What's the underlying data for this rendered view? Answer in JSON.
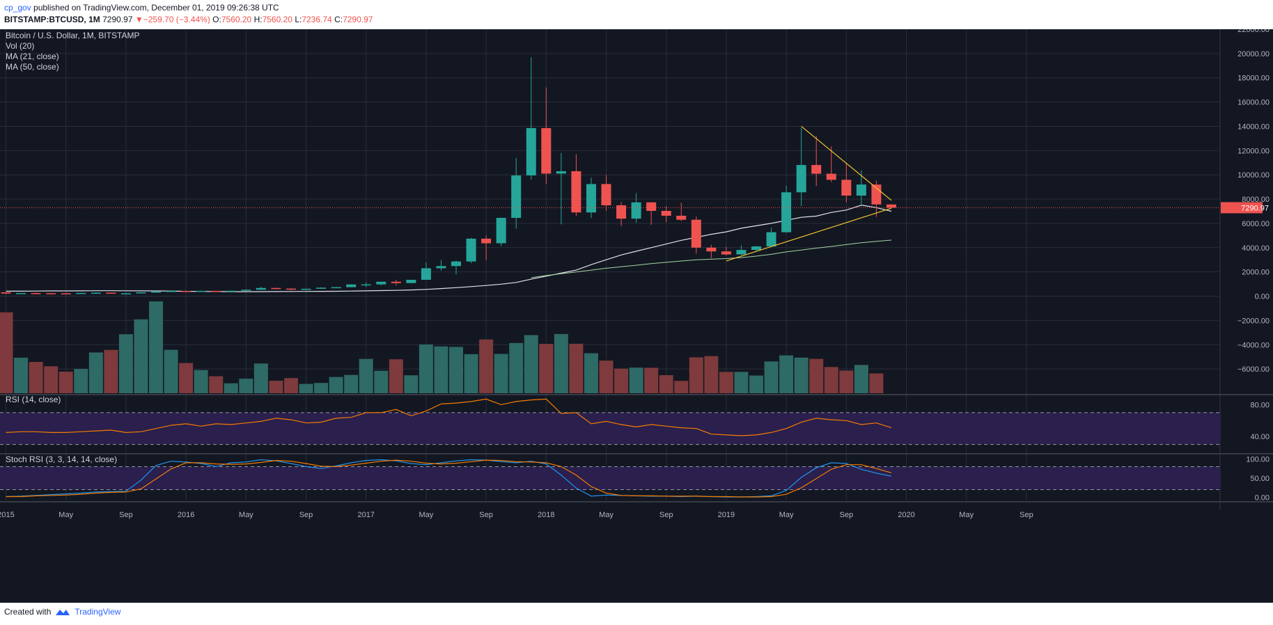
{
  "header": {
    "user": "cp_gov",
    "published": " published on TradingView.com, December 01, 2019 09:26:38 UTC",
    "symbol": "BITSTAMP:BTCUSD, 1M",
    "last": "7290.97",
    "change_arrow": "▼",
    "change": "−259.70 (−3.44%)",
    "o_label": "O:",
    "o": "7560.20",
    "h_label": "H:",
    "h": "7560.20",
    "l_label": "L:",
    "l": "7236.74",
    "c_label": "C:",
    "c": "7290.97"
  },
  "footer": {
    "created_with": "Created with",
    "brand": "TradingView"
  },
  "colors": {
    "background": "#131722",
    "grid": "#2a2e39",
    "up": "#26a69a",
    "down": "#ef5350",
    "vol_up": "#2e6a66",
    "vol_down": "#7e3a3c",
    "ma21": "#e0e3eb",
    "ma50": "#a5d6a7",
    "trend": "#f4c430",
    "rsi_line": "#f57c00",
    "rsi_band": "#2a1f4d",
    "stoch_k": "#2196f3",
    "stoch_d": "#f57c00",
    "price_line": "#ef5350"
  },
  "chart_data": [
    {
      "type": "candlestick",
      "title": "Bitcoin / U.S. Dollar, 1M, BITSTAMP",
      "legend": [
        "Vol (20)",
        "MA (21, close)",
        "MA (50, close)"
      ],
      "x_ticks": [
        "2015",
        "May",
        "Sep",
        "2016",
        "May",
        "Sep",
        "2017",
        "May",
        "Sep",
        "2018",
        "May",
        "Sep",
        "2019",
        "May",
        "Sep",
        "2020",
        "May",
        "Sep"
      ],
      "y_ticks": [
        "22000.00",
        "20000.00",
        "18000.00",
        "16000.00",
        "14000.00",
        "12000.00",
        "10000.00",
        "8000.00",
        "6000.00",
        "4000.00",
        "2000.00",
        "0.00",
        "−2000.00",
        "−4000.00",
        "−6000.00"
      ],
      "ylim": [
        -8000,
        22000
      ],
      "last_price_label": "7290.97",
      "months": [
        "2015-01",
        "2015-02",
        "2015-03",
        "2015-04",
        "2015-05",
        "2015-06",
        "2015-07",
        "2015-08",
        "2015-09",
        "2015-10",
        "2015-11",
        "2015-12",
        "2016-01",
        "2016-02",
        "2016-03",
        "2016-04",
        "2016-05",
        "2016-06",
        "2016-07",
        "2016-08",
        "2016-09",
        "2016-10",
        "2016-11",
        "2016-12",
        "2017-01",
        "2017-02",
        "2017-03",
        "2017-04",
        "2017-05",
        "2017-06",
        "2017-07",
        "2017-08",
        "2017-09",
        "2017-10",
        "2017-11",
        "2017-12",
        "2018-01",
        "2018-02",
        "2018-03",
        "2018-04",
        "2018-05",
        "2018-06",
        "2018-07",
        "2018-08",
        "2018-09",
        "2018-10",
        "2018-11",
        "2018-12",
        "2019-01",
        "2019-02",
        "2019-03",
        "2019-04",
        "2019-05",
        "2019-06",
        "2019-07",
        "2019-08",
        "2019-09",
        "2019-10",
        "2019-11",
        "2019-12"
      ],
      "ohlc": [
        [
          320,
          320,
          170,
          217
        ],
        [
          217,
          260,
          210,
          254
        ],
        [
          254,
          300,
          240,
          244
        ],
        [
          244,
          260,
          215,
          236
        ],
        [
          236,
          248,
          225,
          230
        ],
        [
          230,
          270,
          220,
          263
        ],
        [
          263,
          318,
          255,
          284
        ],
        [
          284,
          285,
          198,
          230
        ],
        [
          230,
          245,
          225,
          236
        ],
        [
          236,
          330,
          236,
          313
        ],
        [
          313,
          500,
          305,
          378
        ],
        [
          378,
          470,
          350,
          430
        ],
        [
          430,
          460,
          365,
          368
        ],
        [
          368,
          445,
          365,
          437
        ],
        [
          437,
          438,
          395,
          416
        ],
        [
          416,
          466,
          416,
          448
        ],
        [
          448,
          550,
          448,
          531
        ],
        [
          531,
          780,
          531,
          674
        ],
        [
          674,
          700,
          580,
          624
        ],
        [
          624,
          625,
          470,
          575
        ],
        [
          575,
          625,
          570,
          609
        ],
        [
          609,
          740,
          605,
          700
        ],
        [
          700,
          760,
          680,
          742
        ],
        [
          742,
          990,
          740,
          966
        ],
        [
          966,
          1150,
          750,
          970
        ],
        [
          970,
          1200,
          900,
          1190
        ],
        [
          1190,
          1350,
          890,
          1080
        ],
        [
          1080,
          1350,
          1060,
          1350
        ],
        [
          1350,
          2790,
          1330,
          2300
        ],
        [
          2300,
          2980,
          2100,
          2480
        ],
        [
          2480,
          2930,
          1800,
          2860
        ],
        [
          2860,
          4800,
          2720,
          4740
        ],
        [
          4740,
          5000,
          2970,
          4360
        ],
        [
          4360,
          6480,
          4110,
          6450
        ],
        [
          6450,
          11400,
          5550,
          9950
        ],
        [
          9950,
          19700,
          9600,
          13850
        ],
        [
          13850,
          17200,
          9220,
          10100
        ],
        [
          10100,
          11800,
          5920,
          10300
        ],
        [
          10300,
          11700,
          6600,
          6900
        ],
        [
          6900,
          9760,
          6430,
          9240
        ],
        [
          9240,
          10000,
          7040,
          7490
        ],
        [
          7490,
          7760,
          5780,
          6390
        ],
        [
          6390,
          8500,
          6060,
          7730
        ],
        [
          7730,
          7760,
          5880,
          7030
        ],
        [
          7030,
          7420,
          6100,
          6630
        ],
        [
          6630,
          7700,
          6200,
          6300
        ],
        [
          6300,
          6560,
          3500,
          4000
        ],
        [
          4000,
          4230,
          3120,
          3690
        ],
        [
          3690,
          4080,
          3350,
          3440
        ],
        [
          3440,
          4200,
          3390,
          3810
        ],
        [
          3810,
          4140,
          3670,
          4100
        ],
        [
          4100,
          5630,
          4080,
          5270
        ],
        [
          5270,
          9100,
          5230,
          8560
        ],
        [
          8560,
          13880,
          7430,
          10810
        ],
        [
          10810,
          13200,
          9070,
          10090
        ],
        [
          10090,
          12340,
          9400,
          9590
        ],
        [
          9590,
          10950,
          7730,
          8290
        ],
        [
          8290,
          10370,
          7400,
          9200
        ],
        [
          9200,
          9520,
          6530,
          7560
        ],
        [
          7560,
          7560,
          7237,
          7291
        ]
      ],
      "volume": [
        [
          5,
          -1330
        ],
        [
          3,
          -5070
        ],
        [
          2,
          -5420
        ],
        [
          2,
          -5780
        ],
        [
          2,
          -6220
        ],
        [
          3,
          -6000
        ],
        [
          3,
          -4640
        ],
        [
          2,
          -4430
        ],
        [
          3,
          -3140
        ],
        [
          3,
          -1910
        ],
        [
          3,
          -430
        ],
        [
          3,
          -4420
        ],
        [
          2,
          -5510
        ],
        [
          3,
          -6090
        ],
        [
          2,
          -6600
        ],
        [
          3,
          -7180
        ],
        [
          3,
          -6800
        ],
        [
          3,
          -5550
        ],
        [
          2,
          -6970
        ],
        [
          2,
          -6750
        ],
        [
          3,
          -7230
        ],
        [
          3,
          -7150
        ],
        [
          3,
          -6660
        ],
        [
          3,
          -6490
        ],
        [
          2,
          -5170
        ],
        [
          3,
          -6150
        ],
        [
          2,
          -5200
        ],
        [
          3,
          -6520
        ],
        [
          3,
          -3980
        ],
        [
          3,
          -4140
        ],
        [
          3,
          -4180
        ],
        [
          3,
          -4780
        ],
        [
          2,
          -3570
        ],
        [
          3,
          -4760
        ],
        [
          3,
          -3860
        ],
        [
          3,
          -3210
        ],
        [
          2,
          -3930
        ],
        [
          3,
          -3120
        ],
        [
          2,
          -3920
        ],
        [
          3,
          -4700
        ],
        [
          2,
          -5310
        ],
        [
          2,
          -5970
        ],
        [
          3,
          -5890
        ],
        [
          2,
          -5900
        ],
        [
          2,
          -6510
        ],
        [
          2,
          -6980
        ],
        [
          2,
          -5040
        ],
        [
          2,
          -4940
        ],
        [
          2,
          -6240
        ],
        [
          3,
          -6240
        ],
        [
          3,
          -6540
        ],
        [
          3,
          -5380
        ],
        [
          3,
          -4880
        ],
        [
          2,
          -5060
        ],
        [
          2,
          -5170
        ],
        [
          2,
          -5840
        ],
        [
          2,
          -6130
        ],
        [
          3,
          -5670
        ],
        [
          2,
          -6370
        ],
        [
          2,
          -8000
        ]
      ],
      "ma21": [
        410,
        410,
        420,
        430,
        430,
        440,
        450,
        450,
        445,
        440,
        430,
        420,
        400,
        390,
        380,
        375,
        370,
        375,
        380,
        385,
        390,
        395,
        405,
        420,
        440,
        460,
        480,
        510,
        560,
        630,
        700,
        790,
        880,
        990,
        1130,
        1400,
        1650,
        1900,
        2150,
        2600,
        3000,
        3400,
        3700,
        4000,
        4300,
        4600,
        4850,
        5100,
        5300,
        5600,
        5800,
        6000,
        6250,
        6500,
        6600,
        6900,
        7100,
        7500,
        7300,
        7000
      ],
      "ma50": [
        null,
        null,
        null,
        null,
        null,
        null,
        null,
        null,
        null,
        null,
        null,
        null,
        null,
        null,
        null,
        null,
        null,
        null,
        null,
        null,
        null,
        null,
        null,
        null,
        null,
        null,
        null,
        null,
        null,
        null,
        null,
        null,
        null,
        null,
        null,
        1520,
        1700,
        1850,
        2000,
        2150,
        2300,
        2420,
        2550,
        2680,
        2790,
        2900,
        3000,
        3050,
        3100,
        3180,
        3300,
        3450,
        3650,
        3800,
        3960,
        4100,
        4250,
        4400,
        4520,
        4620
      ],
      "trend_lines": [
        {
          "from": [
            "2019-01",
            2900
          ],
          "to": [
            "2019-12",
            7250
          ]
        },
        {
          "from": [
            "2019-06",
            14000
          ],
          "to": [
            "2019-12",
            7900
          ]
        }
      ]
    },
    {
      "type": "line",
      "title": "RSI (14, close)",
      "y_ticks": [
        "80.00",
        "40.00"
      ],
      "band": [
        30,
        70
      ],
      "ylim": [
        20,
        90
      ],
      "values": [
        45,
        46,
        46,
        45,
        45,
        46,
        47,
        48,
        45,
        46,
        50,
        54,
        56,
        53,
        56,
        55,
        57,
        59,
        63,
        61,
        57,
        58,
        63,
        64,
        70,
        70,
        74,
        66,
        72,
        81,
        82,
        84,
        87,
        80,
        84,
        86,
        87,
        69,
        70,
        56,
        59,
        55,
        52,
        55,
        53,
        51,
        50,
        43,
        42,
        41,
        42,
        45,
        50,
        58,
        63,
        61,
        60,
        55,
        57,
        51
      ]
    },
    {
      "type": "line",
      "title": "Stoch RSI (3, 3, 14, 14, close)",
      "y_ticks": [
        "100.00",
        "50.00",
        "0.00"
      ],
      "band": [
        20,
        80
      ],
      "ylim": [
        -8,
        108
      ],
      "k": [
        2,
        3,
        5,
        7,
        9,
        11,
        14,
        15,
        16,
        45,
        83,
        94,
        92,
        88,
        80,
        90,
        92,
        98,
        95,
        88,
        80,
        75,
        82,
        90,
        96,
        98,
        95,
        88,
        85,
        90,
        95,
        98,
        97,
        93,
        90,
        94,
        87,
        58,
        24,
        3,
        6,
        5,
        4,
        3,
        3,
        2,
        3,
        2,
        1,
        1,
        2,
        4,
        18,
        52,
        77,
        90,
        88,
        73,
        63,
        55
      ],
      "d": [
        2,
        2,
        4,
        5,
        6,
        8,
        11,
        13,
        14,
        22,
        48,
        74,
        90,
        90,
        87,
        86,
        87,
        91,
        96,
        94,
        88,
        81,
        80,
        84,
        89,
        94,
        97,
        94,
        89,
        87,
        89,
        93,
        97,
        96,
        93,
        92,
        90,
        80,
        58,
        28,
        11,
        5,
        4,
        4,
        3,
        3,
        3,
        2,
        2,
        1,
        1,
        2,
        8,
        25,
        49,
        73,
        85,
        85,
        75,
        64
      ]
    }
  ]
}
